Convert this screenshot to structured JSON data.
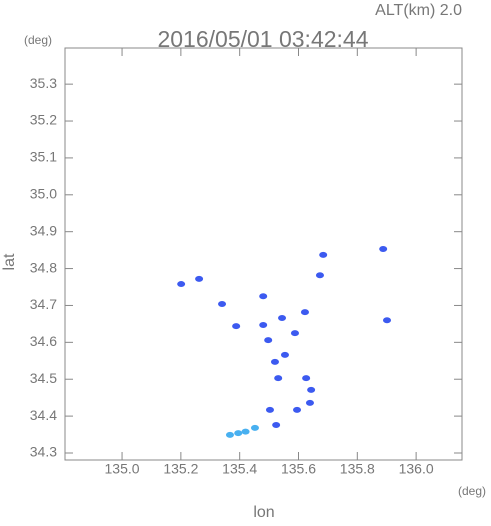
{
  "chart_data": {
    "type": "scatter",
    "title": "2016/05/01 03:42:44",
    "subtitle": "ALT(km)  2.0",
    "x_label": "lon",
    "x_unit": "(deg)",
    "y_label": "lat",
    "y_unit": "(deg)",
    "xlim": [
      134.806,
      136.156
    ],
    "ylim": [
      34.281,
      35.398
    ],
    "xticks": [
      {
        "value": 135.0,
        "label": "135.0"
      },
      135.2,
      135.4,
      135.6,
      135.8,
      {
        "value": 136.0,
        "label": "136.0"
      }
    ],
    "yticks": [
      34.3,
      34.4,
      34.5,
      34.6,
      34.7,
      34.8,
      34.9,
      {
        "value": 35.0,
        "label": "35.0"
      },
      35.1,
      35.2,
      35.3
    ],
    "series": [
      {
        "color": "#3c5af0",
        "x": [
          135.201,
          135.262,
          135.34,
          135.388,
          135.48,
          135.544,
          135.622,
          135.588,
          135.497,
          135.554,
          135.52,
          135.531,
          135.626,
          135.643,
          135.503,
          135.639,
          135.595,
          135.524,
          135.901,
          135.888,
          135.684,
          135.673,
          135.48
        ],
        "y": [
          34.758,
          34.772,
          34.704,
          34.644,
          34.647,
          34.666,
          34.682,
          34.625,
          34.606,
          34.566,
          34.547,
          34.503,
          34.503,
          34.471,
          34.417,
          34.436,
          34.417,
          34.376,
          34.66,
          34.853,
          34.837,
          34.782,
          34.725
        ]
      },
      {
        "color": "#48b0f0",
        "x": [
          135.452,
          135.395,
          135.367,
          135.42
        ],
        "y": [
          34.368,
          34.354,
          34.349,
          34.358
        ]
      }
    ]
  }
}
